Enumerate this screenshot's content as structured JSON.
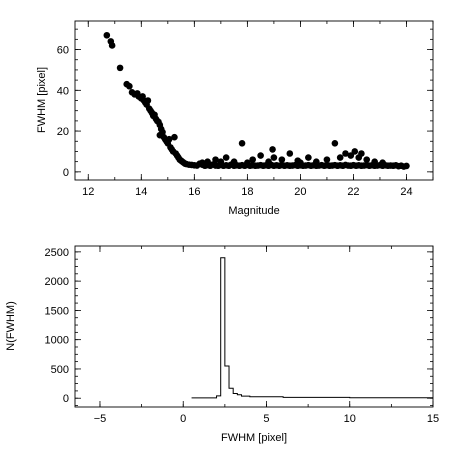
{
  "chart_data": [
    {
      "type": "scatter",
      "xlabel": "Magnitude",
      "ylabel": "FWHM [pixel]",
      "xlim": [
        11.5,
        25
      ],
      "ylim": [
        -4,
        74
      ],
      "xticks": [
        12,
        14,
        16,
        18,
        20,
        22,
        24
      ],
      "yticks": [
        0,
        20,
        40,
        60
      ],
      "xtick_labels": [
        "12",
        "14",
        "16",
        "18",
        "20",
        "22",
        "24"
      ],
      "ytick_labels": [
        "0",
        "20",
        "40",
        "60"
      ],
      "grid": false,
      "marker_color": "#000000",
      "series": [
        {
          "points": [
            [
              12.7,
              67
            ],
            [
              12.85,
              64
            ],
            [
              12.9,
              62
            ],
            [
              13.2,
              51
            ],
            [
              13.45,
              43
            ],
            [
              13.55,
              42
            ],
            [
              13.65,
              39
            ],
            [
              13.75,
              38
            ],
            [
              13.85,
              38.5
            ],
            [
              13.9,
              37
            ],
            [
              14.0,
              36
            ],
            [
              14.05,
              37
            ],
            [
              14.1,
              35
            ],
            [
              14.15,
              34
            ],
            [
              14.2,
              33
            ],
            [
              14.25,
              35
            ],
            [
              14.3,
              31
            ],
            [
              14.35,
              30
            ],
            [
              14.4,
              29
            ],
            [
              14.45,
              27.5
            ],
            [
              14.5,
              28
            ],
            [
              14.55,
              26
            ],
            [
              14.6,
              25
            ],
            [
              14.65,
              24.5
            ],
            [
              14.7,
              23
            ],
            [
              14.7,
              18
            ],
            [
              14.75,
              21
            ],
            [
              14.8,
              19.5
            ],
            [
              14.85,
              17
            ],
            [
              14.9,
              16
            ],
            [
              14.95,
              15
            ],
            [
              15.0,
              14
            ],
            [
              15.05,
              16
            ],
            [
              15.1,
              12
            ],
            [
              15.15,
              11
            ],
            [
              15.2,
              10
            ],
            [
              15.25,
              17
            ],
            [
              15.3,
              9
            ],
            [
              15.35,
              8
            ],
            [
              15.4,
              7
            ],
            [
              15.45,
              6
            ],
            [
              15.5,
              5.5
            ],
            [
              15.55,
              5
            ],
            [
              15.6,
              4.5
            ],
            [
              15.65,
              4
            ],
            [
              15.7,
              3.8
            ],
            [
              15.8,
              3.5
            ],
            [
              15.9,
              3.4
            ],
            [
              16.0,
              3.2
            ],
            [
              16.1,
              3.1
            ],
            [
              16.2,
              4
            ],
            [
              16.3,
              3.5
            ],
            [
              16.4,
              3.0
            ],
            [
              16.5,
              3.3
            ],
            [
              16.6,
              3.0
            ],
            [
              16.7,
              3.6
            ],
            [
              16.8,
              3.1
            ],
            [
              16.9,
              3.0
            ],
            [
              17.0,
              3.4
            ],
            [
              17.1,
              3.0
            ],
            [
              17.2,
              3.2
            ],
            [
              17.3,
              3.0
            ],
            [
              17.4,
              3.6
            ],
            [
              17.5,
              3.0
            ],
            [
              17.6,
              3.2
            ],
            [
              17.7,
              3.0
            ],
            [
              17.8,
              3.3
            ],
            [
              17.9,
              3.0
            ],
            [
              18.0,
              3.4
            ],
            [
              18.1,
              3.0
            ],
            [
              18.2,
              3.2
            ],
            [
              18.3,
              3.0
            ],
            [
              18.4,
              3.1
            ],
            [
              18.5,
              3.3
            ],
            [
              18.6,
              3.0
            ],
            [
              18.7,
              3.2
            ],
            [
              18.8,
              3.0
            ],
            [
              18.9,
              3.4
            ],
            [
              19.0,
              3.0
            ],
            [
              19.1,
              3.2
            ],
            [
              19.2,
              3.0
            ],
            [
              19.3,
              3.3
            ],
            [
              19.4,
              3.0
            ],
            [
              19.5,
              3.2
            ],
            [
              19.6,
              3.0
            ],
            [
              19.7,
              3.1
            ],
            [
              19.8,
              3.3
            ],
            [
              19.9,
              3.0
            ],
            [
              20.0,
              3.2
            ],
            [
              20.1,
              3.0
            ],
            [
              20.2,
              3.1
            ],
            [
              20.3,
              3.3
            ],
            [
              20.4,
              3.0
            ],
            [
              20.5,
              3.2
            ],
            [
              20.6,
              3.0
            ],
            [
              20.7,
              3.1
            ],
            [
              20.8,
              3.3
            ],
            [
              20.9,
              3.0
            ],
            [
              21.0,
              3.2
            ],
            [
              21.1,
              3.0
            ],
            [
              21.2,
              3.1
            ],
            [
              21.3,
              3.3
            ],
            [
              21.4,
              3.0
            ],
            [
              21.5,
              3.2
            ],
            [
              21.6,
              3.0
            ],
            [
              21.7,
              3.4
            ],
            [
              21.8,
              3.1
            ],
            [
              21.9,
              3.0
            ],
            [
              22.0,
              3.3
            ],
            [
              22.1,
              3.0
            ],
            [
              22.2,
              3.2
            ],
            [
              22.3,
              3.0
            ],
            [
              22.4,
              3.1
            ],
            [
              22.5,
              3.3
            ],
            [
              22.6,
              3.0
            ],
            [
              22.7,
              3.2
            ],
            [
              22.8,
              3.0
            ],
            [
              22.9,
              3.1
            ],
            [
              23.0,
              3.3
            ],
            [
              23.1,
              3.0
            ],
            [
              23.2,
              3.2
            ],
            [
              23.3,
              3.0
            ],
            [
              23.4,
              3.1
            ],
            [
              23.5,
              3.0
            ],
            [
              23.6,
              3.2
            ],
            [
              23.7,
              2.8
            ],
            [
              23.8,
              3.0
            ],
            [
              23.9,
              2.6
            ],
            [
              24.0,
              2.9
            ],
            [
              16.5,
              5
            ],
            [
              16.8,
              6
            ],
            [
              17.2,
              7
            ],
            [
              17.5,
              5
            ],
            [
              17.8,
              14
            ],
            [
              18.2,
              6
            ],
            [
              18.5,
              8
            ],
            [
              18.8,
              5
            ],
            [
              18.95,
              11
            ],
            [
              19.3,
              6
            ],
            [
              19.6,
              9
            ],
            [
              19.9,
              5.5
            ],
            [
              20.3,
              7
            ],
            [
              20.6,
              5
            ],
            [
              21.0,
              6
            ],
            [
              21.3,
              14
            ],
            [
              21.5,
              7
            ],
            [
              21.7,
              9
            ],
            [
              21.9,
              8
            ],
            [
              22.05,
              10
            ],
            [
              22.2,
              7
            ],
            [
              22.3,
              9
            ],
            [
              22.5,
              6
            ],
            [
              22.8,
              5
            ],
            [
              23.1,
              4.5
            ],
            [
              16.3,
              4.5
            ],
            [
              17.0,
              5
            ],
            [
              18.0,
              4.5
            ],
            [
              19.0,
              7
            ],
            [
              20.0,
              4.5
            ]
          ]
        }
      ]
    },
    {
      "type": "histogram",
      "xlabel": "FWHM [pixel]",
      "ylabel": "N(FWHM)",
      "xlim": [
        -6.5,
        15
      ],
      "ylim": [
        -150,
        2600
      ],
      "xticks": [
        -5,
        0,
        5,
        10,
        15
      ],
      "yticks": [
        0,
        500,
        1000,
        1500,
        2000,
        2500
      ],
      "xtick_labels": [
        "−5",
        "0",
        "5",
        "10",
        "15"
      ],
      "ytick_labels": [
        "0",
        "500",
        "1000",
        "1500",
        "2000",
        "2500"
      ],
      "grid": false,
      "line_color": "#000000",
      "bin_edges": [
        0.5,
        2.0,
        2.25,
        2.5,
        2.75,
        3.0,
        3.25,
        3.5,
        4.0,
        6.0,
        10.0,
        15.0
      ],
      "counts": [
        5,
        40,
        2400,
        550,
        170,
        80,
        60,
        35,
        25,
        15,
        8
      ]
    }
  ]
}
